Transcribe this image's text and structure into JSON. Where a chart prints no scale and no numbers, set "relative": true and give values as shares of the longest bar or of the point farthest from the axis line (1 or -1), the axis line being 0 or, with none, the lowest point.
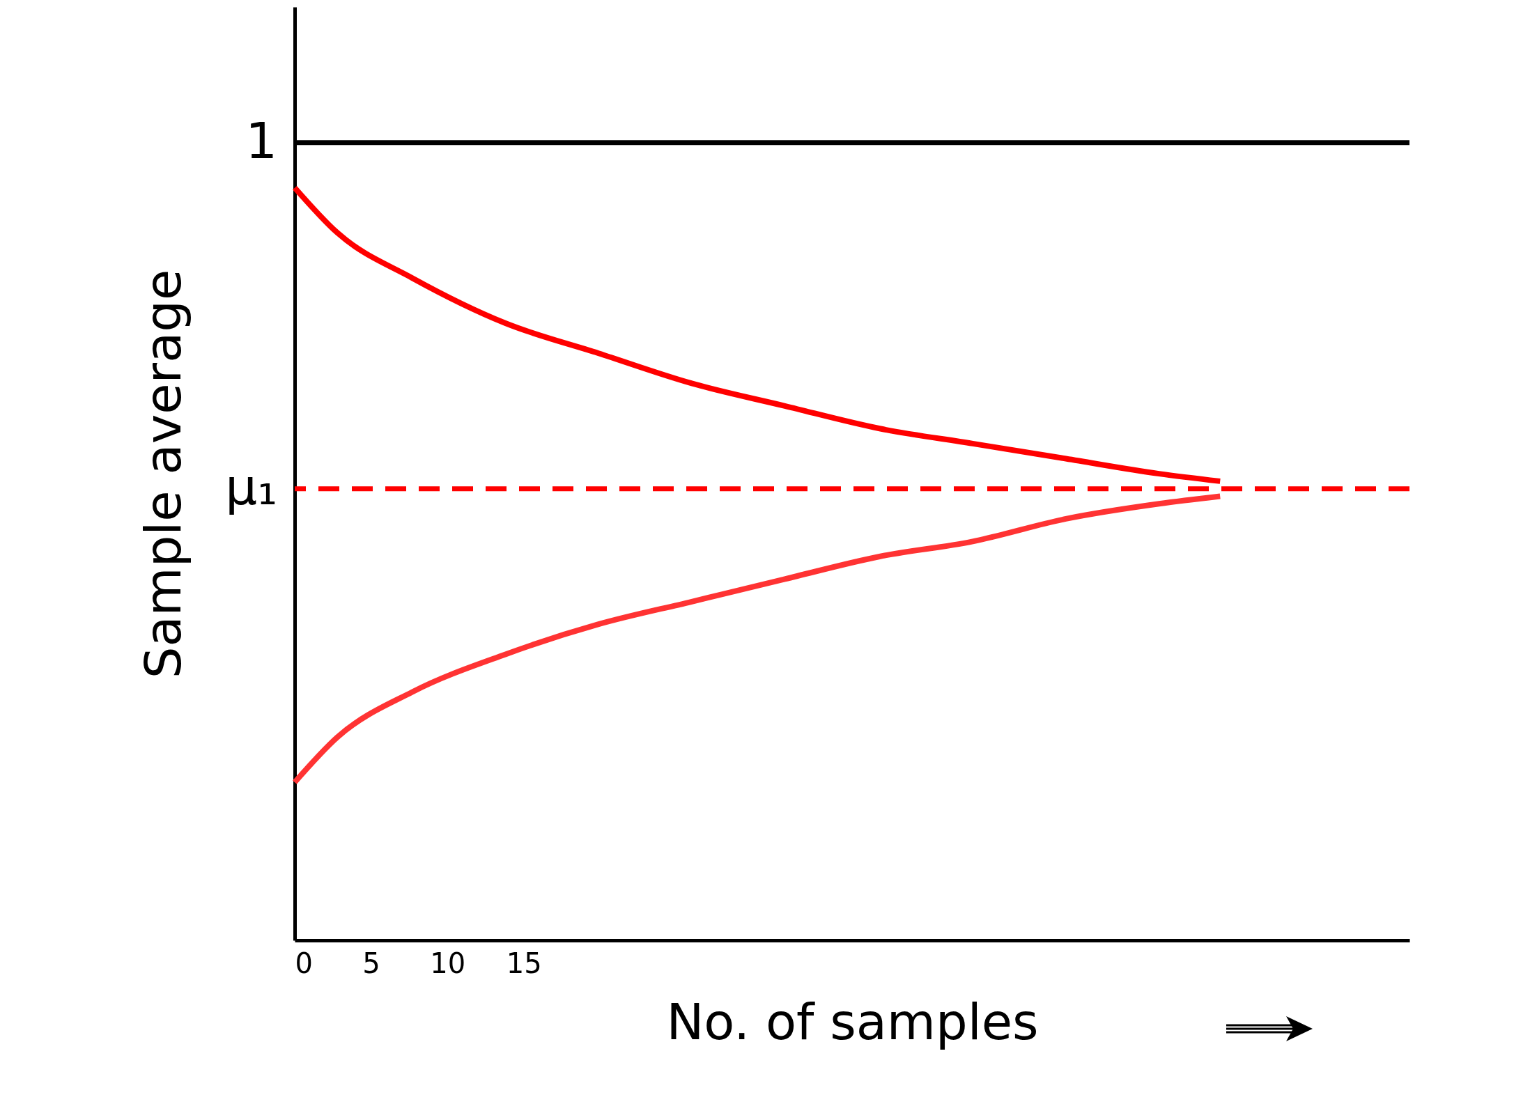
{
  "chart_data": {
    "type": "line",
    "xlabel": "No. of samples",
    "ylabel": "Sample average",
    "xlim": [
      0,
      73
    ],
    "xticks": [
      0,
      5,
      10,
      15
    ],
    "relative": true,
    "grid": false,
    "line_style": "solid",
    "series": [
      {
        "color": "#ff0000",
        "x": [
          0,
          2.8,
          7.7,
          13.8,
          19.9,
          26.0,
          32.1,
          38.3,
          44.4,
          50.5,
          56.6,
          60.6
        ],
        "values": [
          1.0,
          0.94,
          0.88,
          0.82,
          0.78,
          0.74,
          0.71,
          0.68,
          0.66,
          0.64,
          0.62,
          0.61
        ]
      },
      {
        "color": "#ff3333",
        "x": [
          0,
          2.8,
          7.7,
          13.8,
          19.9,
          26.0,
          32.1,
          38.3,
          44.4,
          50.5,
          56.6,
          60.6
        ],
        "values": [
          0.21,
          0.27,
          0.33,
          0.38,
          0.42,
          0.45,
          0.48,
          0.51,
          0.53,
          0.56,
          0.58,
          0.59
        ]
      }
    ],
    "ref_lines": [
      {
        "axis": "y",
        "value": 1.06,
        "label": "1",
        "color": "#000000",
        "line_style": "solid"
      },
      {
        "axis": "y",
        "value": 0.6,
        "label": "μ₁",
        "color": "#ff0000",
        "line_style": "dashed"
      }
    ]
  }
}
